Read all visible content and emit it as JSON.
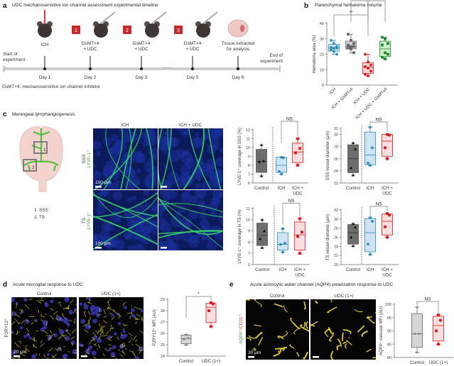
{
  "panel_a": {
    "letter": "a",
    "title": "UDC mechanosensitive ion channel assessment experimental timeline",
    "start_label": [
      "Start of",
      "experiment"
    ],
    "end_label": [
      "End of",
      "experiment"
    ],
    "steps": [
      {
        "day": "Day 1",
        "label": [
          "ICH"
        ],
        "badge": null
      },
      {
        "day": "Day 2",
        "label": [
          "GsMT×4",
          "+ UDC"
        ],
        "badge": "1"
      },
      {
        "day": "Day 3",
        "label": [
          "GsMT×4",
          "+ UDC"
        ],
        "badge": "2"
      },
      {
        "day": "Day 5",
        "label": [
          "GsMT×4",
          "+ UDC"
        ],
        "badge": "3"
      },
      {
        "day": "Day 6",
        "label": [
          "Tissue extracted",
          "for analysis"
        ],
        "badge": null
      }
    ],
    "ellipsis": "........",
    "footnote": "GsMT×4: mechanosensitive ion channel inhibitor"
  },
  "panel_b": {
    "letter": "b",
    "title": "Parenchymal hematoma volume"
  },
  "panel_c": {
    "letter": "c",
    "title": "Meningeal lymphangiogenesis",
    "brain_legend": [
      "1. SSS",
      "2. TS"
    ],
    "brain_boxes": [
      "1",
      "2"
    ],
    "columns": [
      "ICH",
      "ICH + UDC"
    ],
    "rows": [
      {
        "region": "SSS",
        "stain": "LYVE-1⁺"
      },
      {
        "region": "TS",
        "stain": "LYVE-1⁺"
      }
    ],
    "scale_bar": "100 μm"
  },
  "panel_d": {
    "letter": "d",
    "title": "Acute microglial response to UDC",
    "columns": [
      "Control",
      "UDC (1×)"
    ],
    "stain": "P2RY12⁺",
    "scale_bar": "20 μm"
  },
  "panel_e": {
    "letter": "e",
    "title": "Acute astrocytic water channel (AQP4) polarization response to UDC",
    "columns": [
      "Control",
      "UDC (1×)"
    ],
    "stain": [
      "AQP4⁺",
      "/CD31⁺"
    ],
    "scale_bar": "30 μm"
  },
  "colors": {
    "ich": "#2b8cb0",
    "gsmtx4": "#666666",
    "udc": "#d7191c",
    "combo": "#1f8a2b",
    "control": "#6d6d6d"
  },
  "chart_data": [
    {
      "id": "b",
      "type": "box",
      "ylabel": "Hematoma area (%)",
      "ylim": [
        0,
        40
      ],
      "yticks": [
        0,
        10,
        20,
        30,
        40
      ],
      "categories": [
        "ICH",
        "ICH + GsMTx4",
        "ICH + UDC",
        "ICH + UDC + GsMTx4"
      ],
      "series": [
        {
          "color": "ich",
          "marker": "circle",
          "fill": "#cfe7f5",
          "box": [
            20,
            22,
            24,
            26.5,
            29
          ],
          "points": [
            29,
            27,
            25,
            24.5,
            24,
            24,
            23,
            22,
            20
          ]
        },
        {
          "color": "gsmtx4",
          "marker": "square",
          "fill": "#d4d4d4",
          "box": [
            21,
            23.5,
            25,
            28.5,
            33
          ],
          "points": [
            33,
            29,
            27,
            26,
            25,
            25,
            24,
            23.5,
            21
          ]
        },
        {
          "color": "udc",
          "marker": "circle",
          "fill": "#fbd3d3",
          "box": [
            6,
            7.5,
            11.5,
            14.5,
            20
          ],
          "points": [
            20,
            15,
            13,
            12,
            11,
            9,
            7,
            6
          ]
        },
        {
          "color": "combo",
          "marker": "square",
          "fill": "#cdf2c9",
          "box": [
            17,
            18.5,
            23.5,
            28.5,
            31
          ],
          "points": [
            31,
            30,
            27,
            26,
            21,
            20,
            18,
            17
          ]
        }
      ],
      "significance": [
        {
          "from": 0,
          "to": 2,
          "label": "**"
        },
        {
          "from": 1,
          "to": 2,
          "label": "***"
        },
        {
          "from": 2,
          "to": 3,
          "label": "*"
        }
      ]
    },
    {
      "id": "c1",
      "type": "box",
      "ylabel": "LYVE-1⁺ coverage in SSS (%)",
      "ylim": [
        6,
        12
      ],
      "yticks": [
        6,
        7,
        8,
        9,
        10,
        11,
        12
      ],
      "categories": [
        "Control",
        "ICH",
        "ICH +|UDC"
      ],
      "series": [
        {
          "color": "control",
          "marker": "triangle",
          "fill": "#6d6d6d",
          "box": [
            6.8,
            7.2,
            8.45,
            9.8,
            10.3
          ],
          "points": [
            10.3,
            8.5,
            8.4,
            6.8
          ]
        },
        {
          "color": "ich",
          "marker": "circle",
          "fill": "#cfe3f7",
          "box": [
            7.0,
            7.2,
            8.0,
            8.9,
            8.9
          ],
          "points": [
            8.9,
            8.85,
            7.3,
            7.0
          ]
        },
        {
          "color": "udc",
          "marker": "square",
          "fill": "#fcdede",
          "box": [
            8.0,
            8.3,
            9.5,
            10.5,
            11.0
          ],
          "points": [
            11.0,
            9.9,
            9.4,
            8.0
          ]
        }
      ],
      "significance": [
        {
          "from": 1,
          "to": 2,
          "label": "NS"
        }
      ]
    },
    {
      "id": "c2",
      "type": "box",
      "ylabel": "SSS vessel diameter (μm)",
      "ylim": [
        22,
        31
      ],
      "yticks": [
        22,
        24,
        26,
        28,
        30,
        31
      ],
      "categories": [
        "Control",
        "ICH",
        "ICH +|UDC"
      ],
      "series": [
        {
          "color": "control",
          "marker": "triangle",
          "fill": "#6d6d6d",
          "box": [
            23.3,
            23.7,
            26,
            28.3,
            28.6
          ],
          "points": [
            28.6,
            27.6,
            24.5,
            23.3
          ]
        },
        {
          "color": "ich",
          "marker": "circle",
          "fill": "#cfe3f7",
          "box": [
            24.9,
            25.0,
            26.6,
            30.4,
            31.2
          ],
          "points": [
            31.2,
            27.8,
            25.3,
            24.9
          ]
        },
        {
          "color": "udc",
          "marker": "square",
          "fill": "#fcdede",
          "box": [
            26.0,
            26.4,
            28.9,
            30.0,
            30.0
          ],
          "points": [
            30.0,
            29.9,
            27.8,
            26.0
          ]
        }
      ],
      "significance": [
        {
          "from": 1,
          "to": 2,
          "label": "NS"
        }
      ]
    },
    {
      "id": "c3",
      "type": "box",
      "ylabel": "LYVE-1⁺ coverage in TS (%)",
      "ylim": [
        6,
        11
      ],
      "yticks": [
        6,
        7,
        8,
        9,
        10,
        11
      ],
      "categories": [
        "Control",
        "ICH",
        "ICH +|UDC"
      ],
      "series": [
        {
          "color": "control",
          "marker": "triangle",
          "fill": "#6d6d6d",
          "box": [
            7.5,
            7.7,
            8.6,
            9.7,
            10.0
          ],
          "points": [
            10.0,
            9.0,
            8.3,
            7.5
          ]
        },
        {
          "color": "ich",
          "marker": "circle",
          "fill": "#cfe3f7",
          "box": [
            7.1,
            7.3,
            7.8,
            8.85,
            9.2
          ],
          "points": [
            9.2,
            7.9,
            7.8,
            7.1
          ]
        },
        {
          "color": "udc",
          "marker": "square",
          "fill": "#fcdede",
          "box": [
            7.0,
            7.3,
            8.65,
            9.8,
            10.1
          ],
          "points": [
            10.1,
            8.9,
            8.5,
            7.0
          ]
        }
      ],
      "significance": [
        {
          "from": 1,
          "to": 2,
          "label": "NS"
        }
      ]
    },
    {
      "id": "c4",
      "type": "box",
      "ylabel": "TS vessel diameter (μm)",
      "ylim": [
        20,
        32
      ],
      "yticks": [
        20,
        22,
        24,
        26,
        28,
        30,
        32
      ],
      "categories": [
        "Control",
        "ICH",
        "ICH +|UDC"
      ],
      "series": [
        {
          "color": "control",
          "marker": "triangle",
          "fill": "#6d6d6d",
          "box": [
            24.1,
            24.5,
            27,
            28.8,
            29.0
          ],
          "points": [
            29.0,
            28.2,
            26.0,
            24.1
          ]
        },
        {
          "color": "ich",
          "marker": "circle",
          "fill": "#cfe3f7",
          "box": [
            22.2,
            22.8,
            27.0,
            30.1,
            30.3
          ],
          "points": [
            30.3,
            29.5,
            24.5,
            22.2
          ]
        },
        {
          "color": "udc",
          "marker": "square",
          "fill": "#fcdede",
          "box": [
            26.0,
            26.5,
            29.5,
            31.1,
            31.2
          ],
          "points": [
            31.2,
            30.9,
            28.3,
            26.0
          ]
        }
      ],
      "significance": [
        {
          "from": 1,
          "to": 2,
          "label": "NS"
        }
      ]
    },
    {
      "id": "d",
      "type": "box",
      "ylabel": "P2RY12⁺ MFI (AU)",
      "ylim": [
        24,
        29
      ],
      "yticks": [
        24,
        25,
        26,
        27,
        28,
        29
      ],
      "categories": [
        "Control",
        "UDC (1×)"
      ],
      "series": [
        {
          "color": "gsmtx4",
          "marker": "triangle",
          "fill": "#d6d6d6",
          "box": [
            25.0,
            25.1,
            25.55,
            25.85,
            25.9
          ],
          "points": [
            25.9,
            25.6,
            25.5,
            25.0
          ]
        },
        {
          "color": "udc",
          "marker": "square",
          "fill": "#fcdede",
          "box": [
            26.6,
            26.95,
            28.3,
            28.65,
            28.7
          ],
          "points": [
            28.7,
            28.6,
            28.0,
            26.6
          ]
        }
      ],
      "significance": [
        {
          "from": 0,
          "to": 1,
          "label": "*"
        }
      ]
    },
    {
      "id": "e",
      "type": "box",
      "ylabel": "AQP4⁺ vascular MFI (AU)",
      "ylim": [
        80,
        100
      ],
      "yticks": [
        80,
        85,
        90,
        95,
        100
      ],
      "categories": [
        "Control",
        "UDC (1×)"
      ],
      "series": [
        {
          "color": "gsmtx4",
          "marker": "triangle",
          "fill": "#d6d6d6",
          "box": [
            82,
            83.8,
            88.9,
            96.5,
            99
          ],
          "points": [
            99,
            89,
            89,
            82
          ]
        },
        {
          "color": "udc",
          "marker": "square",
          "fill": "#fcdede",
          "box": [
            85,
            86.2,
            92,
            95.5,
            96
          ],
          "points": [
            96,
            94,
            90,
            85
          ]
        }
      ],
      "significance": [
        {
          "from": 0,
          "to": 1,
          "label": "NS"
        }
      ]
    }
  ]
}
